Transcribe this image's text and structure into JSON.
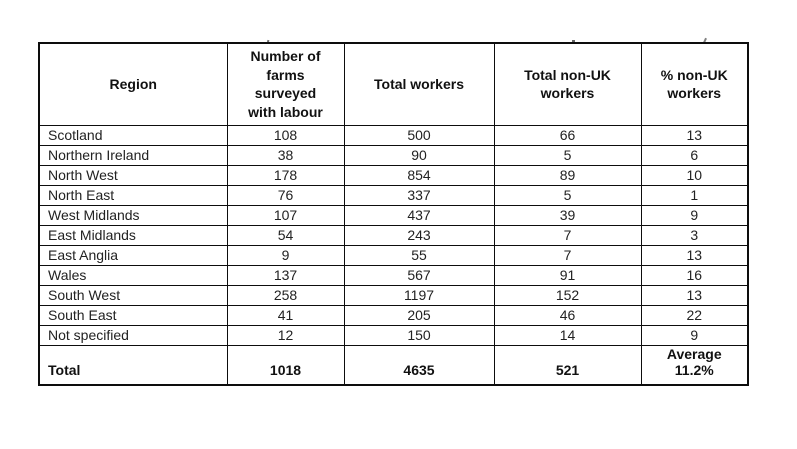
{
  "chart_data": {
    "type": "table",
    "title": "",
    "columns": [
      "Region",
      "Number of farms surveyed with labour",
      "Total workers",
      "Total non-UK workers",
      "% non-UK workers"
    ],
    "rows": [
      [
        "Scotland",
        "108",
        "500",
        "66",
        "13"
      ],
      [
        "Northern Ireland",
        "38",
        "90",
        "5",
        "6"
      ],
      [
        "North West",
        "178",
        "854",
        "89",
        "10"
      ],
      [
        "North East",
        "76",
        "337",
        "5",
        "1"
      ],
      [
        "West Midlands",
        "107",
        "437",
        "39",
        "9"
      ],
      [
        "East Midlands",
        "54",
        "243",
        "7",
        "3"
      ],
      [
        "East Anglia",
        "9",
        "55",
        "7",
        "13"
      ],
      [
        "Wales",
        "137",
        "567",
        "91",
        "16"
      ],
      [
        "South West",
        "258",
        "1197",
        "152",
        "13"
      ],
      [
        "South East",
        "41",
        "205",
        "46",
        "22"
      ],
      [
        "Not specified",
        "12",
        "150",
        "14",
        "9"
      ]
    ],
    "total_row": {
      "label": "Total",
      "farms": "1018",
      "workers": "4635",
      "non_uk": "521",
      "pct_label": "Average",
      "pct_value": "11.2%"
    },
    "layout": {
      "grid": "on",
      "border_color": "#0d0d0d",
      "background": "#ffffff"
    }
  }
}
